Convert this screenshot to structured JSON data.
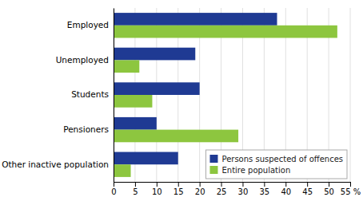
{
  "chart_data": {
    "type": "bar",
    "orientation": "horizontal",
    "categories": [
      "Other inactive population",
      "Pensioners",
      "Students",
      "Unemployed",
      "Employed"
    ],
    "series": [
      {
        "name": "Persons suspected of offences",
        "color": "#1f3a93",
        "values": [
          15,
          10,
          20,
          19,
          38
        ]
      },
      {
        "name": "Entire population",
        "color": "#8dc63f",
        "values": [
          4,
          29,
          9,
          6,
          52
        ]
      }
    ],
    "xlim": [
      0,
      55
    ],
    "xticks": [
      0,
      5,
      10,
      15,
      20,
      25,
      30,
      35,
      40,
      45,
      50,
      {
        "value": 55,
        "label": "55 %"
      }
    ],
    "grid": true,
    "legend": "lower right"
  }
}
